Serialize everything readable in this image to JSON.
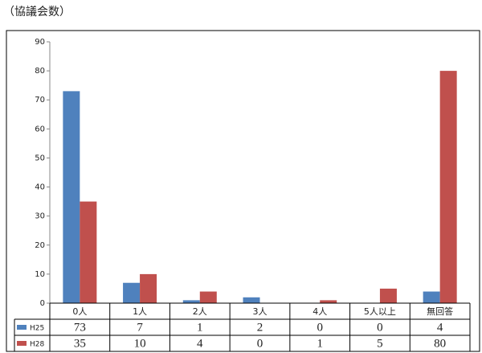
{
  "chart_data": {
    "type": "bar",
    "title": "（協議会数）",
    "categories": [
      "0人",
      "1人",
      "2人",
      "3人",
      "4人",
      "5人以上",
      "無回答"
    ],
    "series": [
      {
        "name": "H25",
        "color": "#4f81bd",
        "values": [
          73,
          7,
          1,
          2,
          0,
          0,
          4
        ]
      },
      {
        "name": "H28",
        "color": "#c0504d",
        "values": [
          35,
          10,
          4,
          0,
          1,
          5,
          80
        ]
      }
    ],
    "ylim": [
      0,
      90
    ],
    "yticks": [
      0,
      10,
      20,
      30,
      40,
      50,
      60,
      70,
      80,
      90
    ],
    "grid": false
  }
}
